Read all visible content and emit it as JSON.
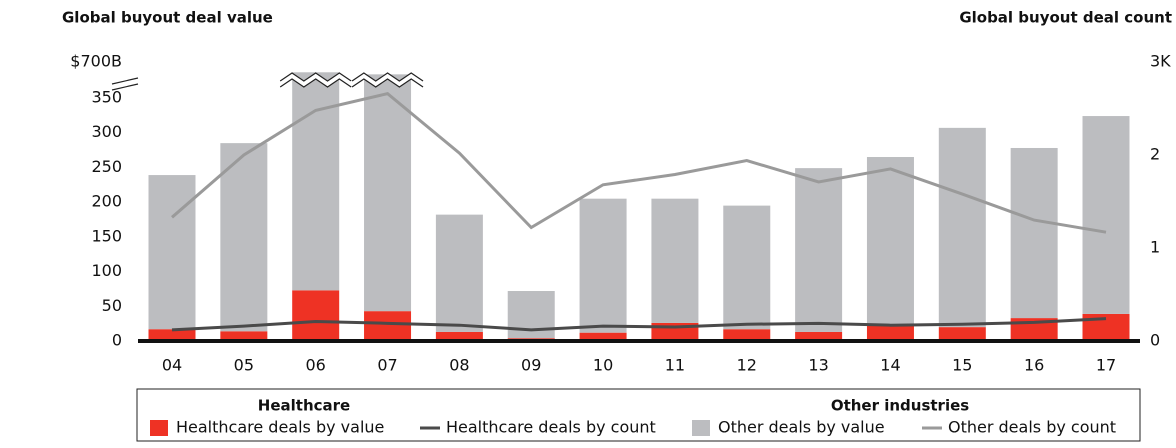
{
  "chart_data": {
    "type": "bar",
    "title": "Global buyout deal value",
    "y2_title": "Global buyout deal count",
    "categories": [
      "04",
      "05",
      "06",
      "07",
      "08",
      "09",
      "10",
      "11",
      "12",
      "13",
      "14",
      "15",
      "16",
      "17"
    ],
    "series": [
      {
        "name": "Healthcare deals by value",
        "type": "bar",
        "color": "#ee3224",
        "values": [
          17,
          14,
          73,
          43,
          13,
          4,
          12,
          26,
          17,
          13,
          24,
          20,
          33,
          39
        ]
      },
      {
        "name": "Healthcare deals by count",
        "type": "line",
        "axis": "y2",
        "color": "#4a4a4a",
        "values": [
          0.12,
          0.16,
          0.21,
          0.19,
          0.17,
          0.12,
          0.16,
          0.15,
          0.18,
          0.19,
          0.17,
          0.18,
          0.2,
          0.24
        ]
      },
      {
        "name": "Other deals by value",
        "type": "bar",
        "color": "#bcbdc0",
        "values": [
          222,
          271,
          527,
          537,
          169,
          68,
          193,
          179,
          178,
          236,
          241,
          287,
          245,
          285
        ]
      },
      {
        "name": "Other deals by count",
        "type": "line",
        "axis": "y2",
        "color": "#9a9a9a",
        "values": [
          1.33,
          2.0,
          2.48,
          2.66,
          2.02,
          1.22,
          1.68,
          1.79,
          1.94,
          1.71,
          1.85,
          1.58,
          1.3,
          1.17
        ]
      }
    ],
    "legend_groups": [
      "Healthcare",
      "Other industries"
    ],
    "ylim": [
      0,
      700
    ],
    "yticks": [
      0,
      50,
      100,
      150,
      200,
      250,
      300,
      350,
      {
        "value": 700,
        "label": "$700B"
      }
    ],
    "axis_break": 350,
    "y2lim": [
      0,
      3
    ],
    "y2ticks": [
      0,
      1,
      2,
      {
        "value": 3,
        "label": "3K"
      }
    ]
  }
}
